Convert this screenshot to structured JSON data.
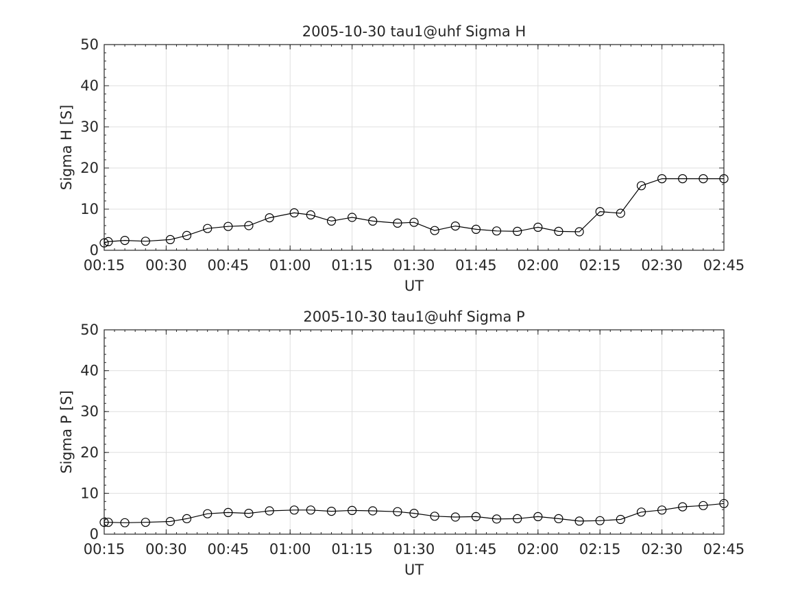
{
  "chart_data": [
    {
      "type": "line",
      "title": "2005-10-30  tau1@uhf Sigma H",
      "xlabel": "UT",
      "ylabel": "Sigma H [S]",
      "xlim": [
        "00:15",
        "02:45"
      ],
      "ylim": [
        0,
        50
      ],
      "x_ticks": [
        "00:15",
        "00:30",
        "00:45",
        "01:00",
        "01:15",
        "01:30",
        "01:45",
        "02:00",
        "02:15",
        "02:30",
        "02:45"
      ],
      "y_ticks": [
        0,
        10,
        20,
        30,
        40,
        50
      ],
      "grid": true,
      "marker": "open-circle",
      "line_color": "#000000",
      "x": [
        "00:15",
        "00:16",
        "00:20",
        "00:25",
        "00:31",
        "00:35",
        "00:40",
        "00:45",
        "00:50",
        "00:55",
        "01:01",
        "01:05",
        "01:10",
        "01:15",
        "01:20",
        "01:26",
        "01:30",
        "01:35",
        "01:40",
        "01:45",
        "01:50",
        "01:55",
        "02:00",
        "02:05",
        "02:10",
        "02:15",
        "02:20",
        "02:25",
        "02:30",
        "02:35",
        "02:40",
        "02:45"
      ],
      "y": [
        1.8,
        2.1,
        2.4,
        2.2,
        2.6,
        3.6,
        5.3,
        5.8,
        6.0,
        7.9,
        9.1,
        8.6,
        7.1,
        8.0,
        7.1,
        6.6,
        6.8,
        4.8,
        5.9,
        5.1,
        4.7,
        4.6,
        5.6,
        4.6,
        4.5,
        9.4,
        9.0,
        15.7,
        17.4,
        17.4,
        17.4,
        17.4
      ]
    },
    {
      "type": "line",
      "title": "2005-10-30  tau1@uhf Sigma P",
      "xlabel": "UT",
      "ylabel": "Sigma P [S]",
      "xlim": [
        "00:15",
        "02:45"
      ],
      "ylim": [
        0,
        50
      ],
      "x_ticks": [
        "00:15",
        "00:30",
        "00:45",
        "01:00",
        "01:15",
        "01:30",
        "01:45",
        "02:00",
        "02:15",
        "02:30",
        "02:45"
      ],
      "y_ticks": [
        0,
        10,
        20,
        30,
        40,
        50
      ],
      "grid": true,
      "marker": "open-circle",
      "line_color": "#000000",
      "x": [
        "00:15",
        "00:16",
        "00:20",
        "00:25",
        "00:31",
        "00:35",
        "00:40",
        "00:45",
        "00:50",
        "00:55",
        "01:01",
        "01:05",
        "01:10",
        "01:15",
        "01:20",
        "01:26",
        "01:30",
        "01:35",
        "01:40",
        "01:45",
        "01:50",
        "01:55",
        "02:00",
        "02:05",
        "02:10",
        "02:15",
        "02:20",
        "02:25",
        "02:30",
        "02:35",
        "02:40",
        "02:45"
      ],
      "y": [
        2.9,
        2.9,
        2.8,
        2.9,
        3.1,
        3.8,
        5.0,
        5.3,
        5.1,
        5.7,
        5.9,
        5.9,
        5.6,
        5.8,
        5.7,
        5.5,
        5.1,
        4.4,
        4.2,
        4.3,
        3.7,
        3.8,
        4.3,
        3.8,
        3.2,
        3.3,
        3.6,
        5.4,
        5.9,
        6.7,
        7.0,
        7.5
      ]
    }
  ]
}
